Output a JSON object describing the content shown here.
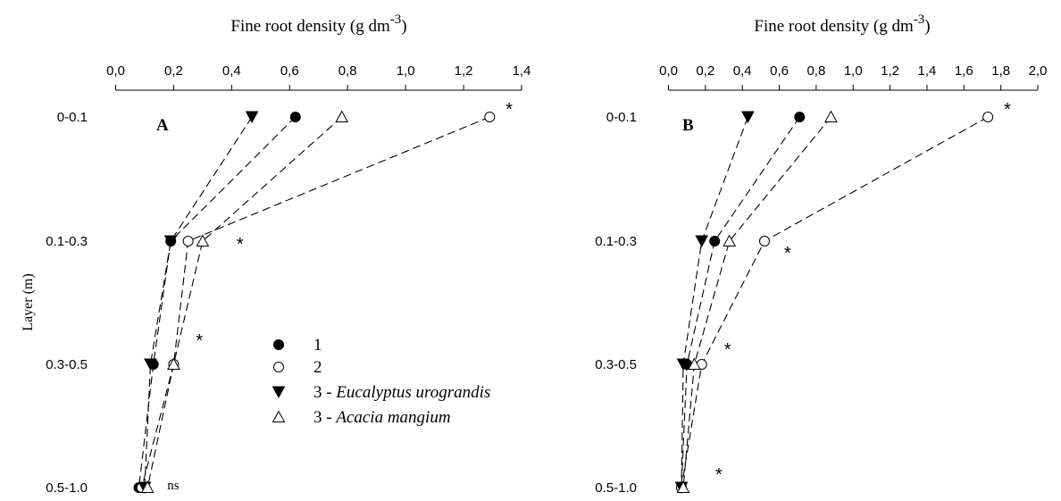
{
  "chart_data": [
    {
      "type": "line",
      "panel_label": "A",
      "title": "Fine root density (g dm-3)",
      "title_main": "Fine root density (g dm",
      "title_sup": "-3",
      "title_close": ")",
      "ylabel": "Layer (m)",
      "xlim": [
        0,
        1.4
      ],
      "x_ticks": [
        "0,0",
        "0,2",
        "0,4",
        "0,6",
        "0,8",
        "1,0",
        "1,2",
        "1,4"
      ],
      "categories": [
        "0-0.1",
        "0.1-0.3",
        "0.3-0.5",
        "0.5-1.0"
      ],
      "series": [
        {
          "name": "1",
          "marker": "filled-circle",
          "values": [
            0.62,
            0.19,
            0.13,
            0.08
          ]
        },
        {
          "name": "2",
          "marker": "open-circle",
          "values": [
            1.29,
            0.25,
            0.2,
            0.09
          ]
        },
        {
          "name": "3 - Eucalyptus urograndis",
          "marker": "filled-triangle-down",
          "values": [
            0.47,
            0.19,
            0.12,
            0.1
          ]
        },
        {
          "name": "3 - Acacia mangium",
          "marker": "open-triangle-up",
          "values": [
            0.78,
            0.3,
            0.2,
            0.11
          ]
        }
      ],
      "annotations": [
        {
          "text": "*",
          "layer": 0
        },
        {
          "text": "*",
          "layer": 1
        },
        {
          "text": "*",
          "layer": 2
        },
        {
          "text": "ns",
          "layer": 3
        }
      ],
      "grid": false
    },
    {
      "type": "line",
      "panel_label": "B",
      "title": "Fine root density (g dm-3)",
      "title_main": "Fine root density (g dm",
      "title_sup": "-3",
      "title_close": ")",
      "xlim": [
        0,
        2.0
      ],
      "x_ticks": [
        "0,0",
        "0,2",
        "0,4",
        "0,6",
        "0,8",
        "1,0",
        "1,2",
        "1,4",
        "1,6",
        "1,8",
        "2,0"
      ],
      "categories": [
        "0-0.1",
        "0.1-0.3",
        "0.3-0.5",
        "0.5-1.0"
      ],
      "series": [
        {
          "name": "1",
          "marker": "filled-circle",
          "values": [
            0.71,
            0.25,
            0.1,
            0.07
          ]
        },
        {
          "name": "2",
          "marker": "open-circle",
          "values": [
            1.73,
            0.52,
            0.18,
            0.07
          ]
        },
        {
          "name": "3 - Eucalyptus urograndis",
          "marker": "filled-triangle-down",
          "values": [
            0.43,
            0.18,
            0.08,
            0.07
          ]
        },
        {
          "name": "3 - Acacia mangium",
          "marker": "open-triangle-up",
          "values": [
            0.88,
            0.33,
            0.14,
            0.08
          ]
        }
      ],
      "annotations": [
        {
          "text": "*",
          "layer": 0
        },
        {
          "text": "*",
          "layer": 1
        },
        {
          "text": "*",
          "layer": 2
        },
        {
          "text": "*",
          "layer": 3
        }
      ],
      "grid": false
    }
  ],
  "legend": {
    "placement": "inside panel A, lower right",
    "items": [
      {
        "label": "1",
        "marker": "filled-circle"
      },
      {
        "label": "2",
        "marker": "open-circle"
      },
      {
        "label_prefix": "3 - ",
        "label_italic": "Eucalyptus urograndis",
        "marker": "filled-triangle-down"
      },
      {
        "label_prefix": "3 -  ",
        "label_italic": "Acacia mangium",
        "marker": "open-triangle-up"
      }
    ]
  }
}
